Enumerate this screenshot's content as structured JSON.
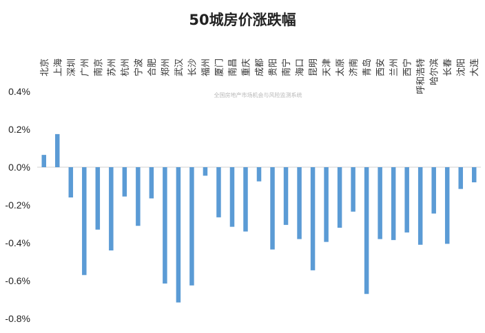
{
  "chart_data": {
    "type": "bar",
    "title": "50城房价涨跌幅",
    "watermark": "全国房地产市场机会与风险监测系统",
    "xlabel": "",
    "ylabel": "",
    "ylim": [
      -0.8,
      0.4
    ],
    "yticks": [
      0.4,
      0.2,
      0.0,
      -0.2,
      -0.4,
      -0.6,
      -0.8
    ],
    "ytick_labels": [
      "0.4%",
      "0.2%",
      "0.0%",
      "-0.2%",
      "-0.4%",
      "-0.6%",
      "-0.8%"
    ],
    "grid": false,
    "legend": "none",
    "bar_color": "#5b9bd5",
    "categories": [
      "北京",
      "上海",
      "深圳",
      "广州",
      "南京",
      "苏州",
      "杭州",
      "宁波",
      "合肥",
      "郑州",
      "武汉",
      "长沙",
      "福州",
      "厦门",
      "南昌",
      "重庆",
      "成都",
      "贵阳",
      "南宁",
      "海口",
      "昆明",
      "天津",
      "太原",
      "济南",
      "青岛",
      "西安",
      "兰州",
      "西宁",
      "呼和浩特",
      "哈尔滨",
      "长春",
      "沈阳",
      "大连"
    ],
    "values": [
      0.065,
      0.175,
      -0.16,
      -0.57,
      -0.33,
      -0.44,
      -0.155,
      -0.31,
      -0.165,
      -0.615,
      -0.715,
      -0.625,
      -0.045,
      -0.265,
      -0.315,
      -0.34,
      -0.075,
      -0.435,
      -0.305,
      -0.38,
      -0.545,
      -0.395,
      -0.32,
      -0.235,
      -0.67,
      -0.38,
      -0.385,
      -0.345,
      -0.41,
      -0.245,
      -0.405,
      -0.115,
      -0.08
    ]
  }
}
